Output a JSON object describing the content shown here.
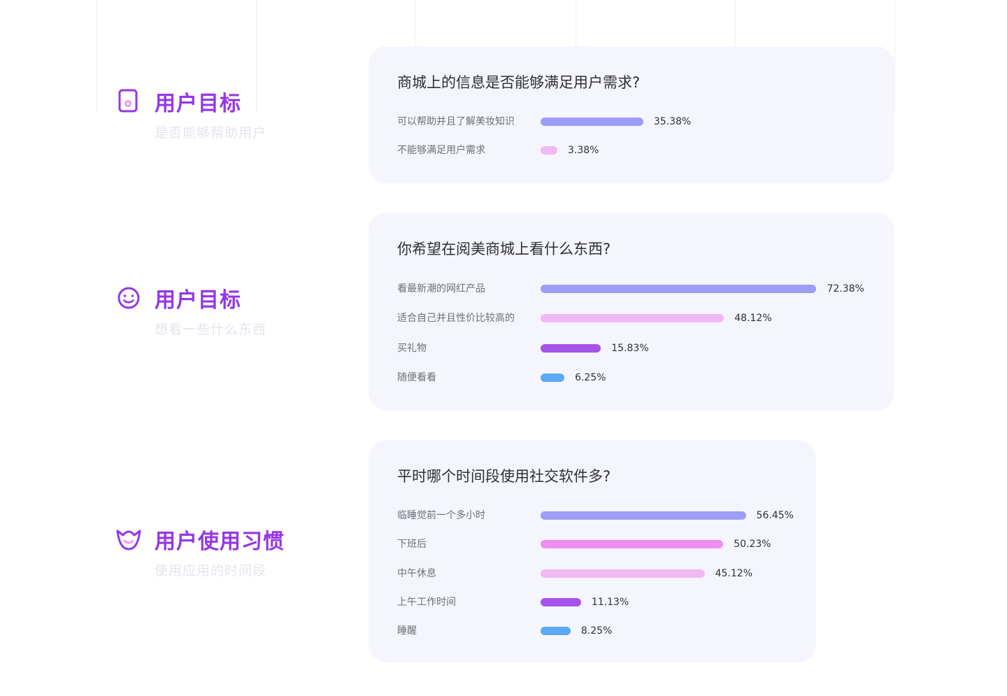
{
  "sections": [
    {
      "icon": "tablet-icon",
      "title": "用户目标",
      "subtitle": "是否能够帮助用户"
    },
    {
      "icon": "smile-icon",
      "title": "用户目标",
      "subtitle": "想看一些什么东西"
    },
    {
      "icon": "cup-icon",
      "title": "用户使用习惯",
      "subtitle": "使用应用的时间段"
    }
  ],
  "colors": {
    "accent": "#9437e6",
    "card_bg": "#f5f6fd",
    "bar_indigo": "#9c9ef5",
    "bar_light_pink": "#f1b8f4",
    "bar_pink": "#ef8ef0",
    "bar_purple": "#a653ea",
    "bar_blue": "#5aa9f4"
  },
  "chart_data": [
    {
      "type": "bar",
      "orientation": "horizontal",
      "title": "商城上的信息是否能够满足用户需求?",
      "categories": [
        "可以帮助并且了解美妆知识",
        "不能够满足用户需求"
      ],
      "values": [
        35.38,
        3.38
      ],
      "value_labels": [
        "35.38%",
        "3.38%"
      ],
      "colors": [
        "#9c9ef5",
        "#f1b8f4"
      ]
    },
    {
      "type": "bar",
      "orientation": "horizontal",
      "title": "你希望在阅美商城上看什么东西?",
      "categories": [
        "看最新潮的网红产品",
        "适合自己并且性价比较高的",
        "买礼物",
        "随便看看"
      ],
      "values": [
        72.38,
        48.12,
        15.83,
        6.25
      ],
      "value_labels": [
        "72.38%",
        "48.12%",
        "15.83%",
        "6.25%"
      ],
      "colors": [
        "#9c9ef5",
        "#f1b8f4",
        "#a653ea",
        "#5aa9f4"
      ]
    },
    {
      "type": "bar",
      "orientation": "horizontal",
      "title": "平时哪个时间段使用社交软件多?",
      "categories": [
        "临睡觉前一个多小时",
        "下班后",
        "中午休息",
        "上午工作时间",
        "睡醒"
      ],
      "values": [
        56.45,
        50.23,
        45.12,
        11.13,
        8.25
      ],
      "value_labels": [
        "56.45%",
        "50.23%",
        "45.12%",
        "11.13%",
        "8.25%"
      ],
      "colors": [
        "#9c9ef5",
        "#ef8ef0",
        "#f1b8f4",
        "#a653ea",
        "#5aa9f4"
      ]
    }
  ]
}
